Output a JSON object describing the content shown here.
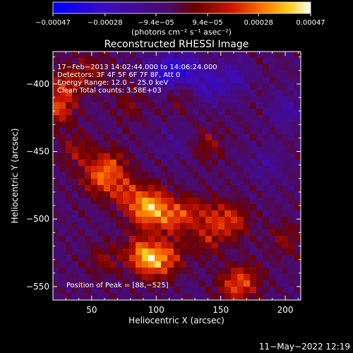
{
  "chart_data": {
    "type": "heatmap",
    "title": "Reconstructed RHESSI Image",
    "xlabel": "Heliocentric X (arcsec)",
    "ylabel": "Heliocentric Y (arcsec)",
    "xlim": [
      20,
      212
    ],
    "ylim": [
      -560,
      -376
    ],
    "x_ticks": [
      50,
      100,
      150,
      200
    ],
    "y_ticks": [
      -400,
      -450,
      -500,
      -550
    ],
    "x_tick_labels": [
      "50",
      "100",
      "150",
      "200"
    ],
    "y_tick_labels": [
      "−400",
      "−450",
      "−500",
      "−550"
    ],
    "colorbar": {
      "colormap": "blue-purple-red-orange-yellow-white",
      "range": [
        -0.00047,
        0.00047
      ],
      "tick_values": [
        -0.00047,
        -0.00028,
        -9.4e-05,
        9.4e-05,
        0.00028,
        0.00047
      ],
      "tick_labels": [
        "−0.00047",
        "−0.00028",
        "−9.4e−05",
        "9.4e−05",
        "0.00028",
        "0.00047"
      ],
      "units_label": "(photons cm⁻² s⁻¹ asec⁻²)"
    },
    "annotations": [
      "17−Feb−2013 14:02:44.000 to 14:06:24.000",
      "Detectors: 3F 4F 5F 6F 7F 8F, Att 0",
      "Energy Range: 12.0 − 25.0 keV",
      "Clean     Total counts: 3.58E+03"
    ],
    "peak_label": "Position of Peak = [88,−525]",
    "peak_position": [
      88,
      -525
    ],
    "intensity_sources": [
      {
        "x": 24,
        "y": -418,
        "value": 1.0
      },
      {
        "x": 30,
        "y": -400,
        "value": 0.7
      },
      {
        "x": 38,
        "y": -450,
        "value": 0.6
      },
      {
        "x": 55,
        "y": -470,
        "value": 0.9
      },
      {
        "x": 65,
        "y": -460,
        "value": 0.8
      },
      {
        "x": 75,
        "y": -480,
        "value": 0.9
      },
      {
        "x": 90,
        "y": -495,
        "value": 1.0
      },
      {
        "x": 98,
        "y": -487,
        "value": 0.9
      },
      {
        "x": 110,
        "y": -500,
        "value": 0.9
      },
      {
        "x": 125,
        "y": -495,
        "value": 0.7
      },
      {
        "x": 145,
        "y": -498,
        "value": 0.6
      },
      {
        "x": 160,
        "y": -502,
        "value": 0.8
      },
      {
        "x": 140,
        "y": -515,
        "value": 0.6
      },
      {
        "x": 88,
        "y": -525,
        "value": 1.0
      },
      {
        "x": 97,
        "y": -532,
        "value": 1.0
      },
      {
        "x": 110,
        "y": -528,
        "value": 0.8
      },
      {
        "x": 60,
        "y": -530,
        "value": 0.5
      },
      {
        "x": 160,
        "y": -550,
        "value": 0.8
      },
      {
        "x": 170,
        "y": -545,
        "value": 0.6
      },
      {
        "x": 200,
        "y": -515,
        "value": 0.5
      },
      {
        "x": 140,
        "y": -445,
        "value": 0.5
      },
      {
        "x": 80,
        "y": -415,
        "value": 0.4
      },
      {
        "x": 50,
        "y": -390,
        "value": 0.5
      },
      {
        "x": 120,
        "y": -408,
        "value": 0.4
      }
    ],
    "negative_sources": [
      {
        "x": 105,
        "y": -392,
        "value": -0.9
      },
      {
        "x": 122,
        "y": -390,
        "value": -0.9
      },
      {
        "x": 140,
        "y": -402,
        "value": -0.7
      },
      {
        "x": 160,
        "y": -395,
        "value": -0.6
      },
      {
        "x": 200,
        "y": -420,
        "value": -0.5
      },
      {
        "x": 185,
        "y": -460,
        "value": -0.4
      },
      {
        "x": 115,
        "y": -445,
        "value": -0.3
      }
    ]
  },
  "footer": {
    "date_stamp": "11−May−2022 12:19"
  }
}
